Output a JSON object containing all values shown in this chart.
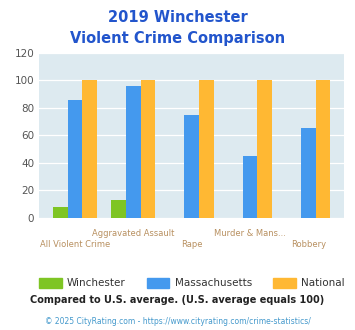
{
  "title_line1": "2019 Winchester",
  "title_line2": "Violent Crime Comparison",
  "categories": [
    "All Violent Crime",
    "Aggravated Assault",
    "Rape",
    "Murder & Mans...",
    "Robbery"
  ],
  "winchester": [
    8,
    13,
    0,
    0,
    0
  ],
  "massachusetts": [
    86,
    96,
    75,
    45,
    65
  ],
  "national": [
    100,
    100,
    100,
    100,
    100
  ],
  "winchester_color": "#7ec524",
  "massachusetts_color": "#4499ee",
  "national_color": "#ffb833",
  "ylim": [
    0,
    120
  ],
  "yticks": [
    0,
    20,
    40,
    60,
    80,
    100,
    120
  ],
  "x_top_labels": [
    "",
    "Aggravated Assault",
    "",
    "Murder & Mans...",
    ""
  ],
  "x_bot_labels": [
    "All Violent Crime",
    "",
    "Rape",
    "",
    "Robbery"
  ],
  "note": "Compared to U.S. average. (U.S. average equals 100)",
  "footer": "© 2025 CityRating.com - https://www.cityrating.com/crime-statistics/",
  "bg_color": "#ddeaf0",
  "title_color": "#2255cc",
  "axis_label_color": "#b89060",
  "legend_label_color": "#333333",
  "note_color": "#222222",
  "footer_color": "#4499cc"
}
